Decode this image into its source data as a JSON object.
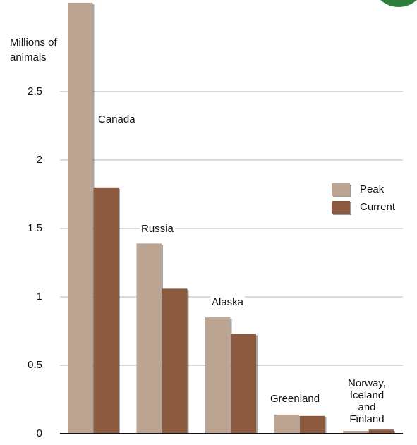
{
  "chart_data": {
    "type": "bar",
    "y_label": "Millions of animals",
    "categories": [
      "Canada",
      "Russia",
      "Alaska",
      "Greenland",
      "Norway, Iceland and Finland"
    ],
    "series": [
      {
        "name": "Peak",
        "color": "#bba492",
        "values": [
          3.15,
          1.39,
          0.85,
          0.14,
          0.02
        ]
      },
      {
        "name": "Current",
        "color": "#8b5a3f",
        "values": [
          1.8,
          1.06,
          0.73,
          0.13,
          0.03
        ]
      }
    ],
    "ylim": [
      0,
      3.17
    ],
    "yticks": [
      0,
      0.5,
      1,
      1.5,
      2,
      2.5
    ],
    "grid": true,
    "legend": "right"
  }
}
